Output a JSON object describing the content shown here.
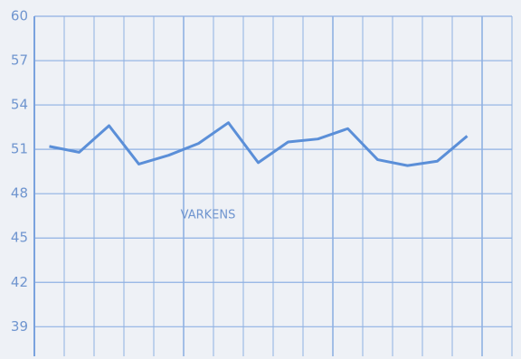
{
  "chart_data": {
    "type": "line",
    "annotation": "VARKENS",
    "categories": [
      null,
      null,
      null,
      null,
      null,
      null,
      null,
      null,
      null,
      null,
      null,
      null,
      null,
      null,
      null,
      null
    ],
    "values": [
      51.2,
      50.8,
      52.6,
      50.0,
      50.6,
      51.4,
      52.8,
      50.1,
      51.5,
      51.7,
      52.4,
      50.3,
      49.9,
      50.2,
      51.9,
      null
    ],
    "color": "#5b8fd8",
    "ylim": [
      37,
      60
    ],
    "yticks": [
      39,
      42,
      45,
      48,
      51,
      54,
      57,
      60
    ],
    "grid": true
  }
}
